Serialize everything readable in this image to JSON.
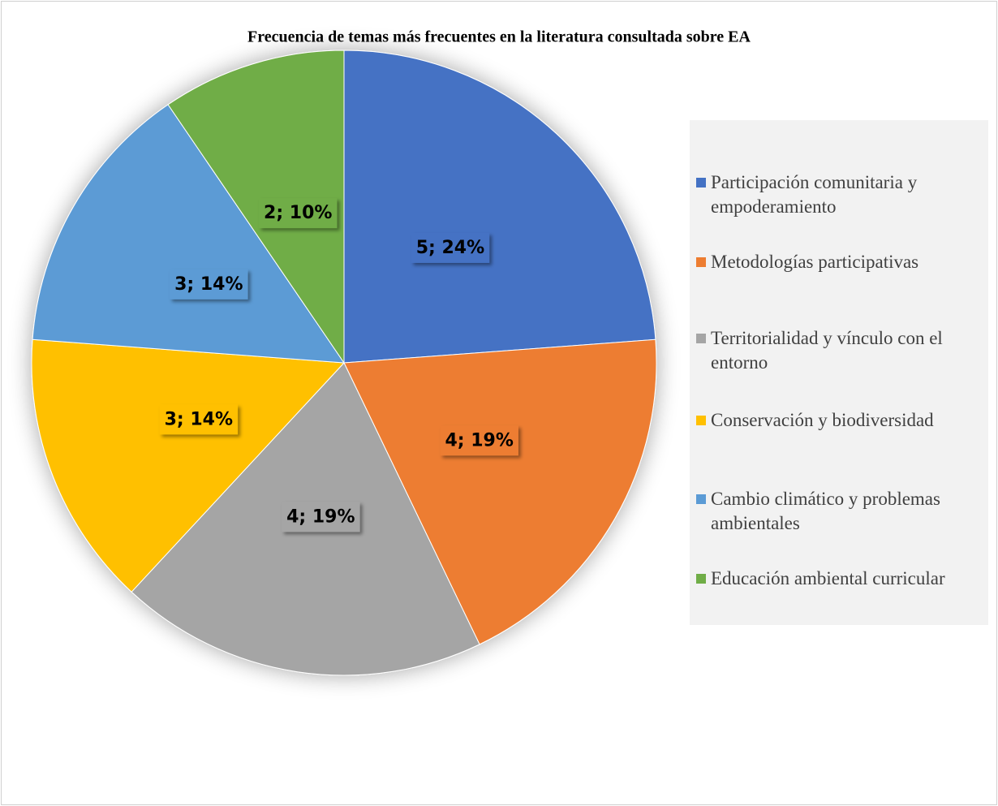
{
  "chart_data": {
    "type": "pie",
    "title": "Frecuencia de temas más frecuentes en la literatura consultada sobre EA",
    "categories": [
      "Participación comunitaria y empoderamiento",
      "Metodologías participativas",
      "Territorialidad y vínculo con el entorno",
      "Conservación y biodiversidad",
      "Cambio climático y problemas ambientales",
      "Educación ambiental curricular"
    ],
    "values": [
      5,
      4,
      4,
      3,
      3,
      2
    ],
    "value_labels": [
      "5; 24%",
      "4; 19%",
      "4; 19%",
      "3; 14%",
      "3; 14%",
      "2; 10%"
    ],
    "colors": [
      "#4472c4",
      "#ed7d31",
      "#a5a5a5",
      "#ffc000",
      "#5b9bd5",
      "#70ad47"
    ],
    "legend": "right"
  }
}
